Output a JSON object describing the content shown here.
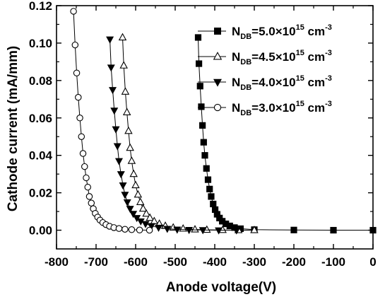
{
  "chart_data": {
    "type": "scatter",
    "xlabel": "Anode voltage(V)",
    "ylabel": "Cathode current (mA/mm)",
    "xlim": [
      -800,
      0
    ],
    "ylim": [
      -0.01,
      0.12
    ],
    "xticks": [
      -800,
      -700,
      -600,
      -500,
      -400,
      -300,
      -200,
      -100,
      0
    ],
    "yticks": [
      0.0,
      0.02,
      0.04,
      0.06,
      0.08,
      0.1,
      0.12
    ],
    "xtick_labels": [
      "-800",
      "-700",
      "-600",
      "-500",
      "-400",
      "-300",
      "-200",
      "-100",
      "0"
    ],
    "ytick_labels": [
      "0.00",
      "0.02",
      "0.04",
      "0.06",
      "0.08",
      "0.10",
      "0.12"
    ],
    "grid": false,
    "legend_position": "top-right",
    "series": [
      {
        "name": "N_DB=5.0×10^15 cm^-3",
        "legend_main": "N",
        "legend_sub": "DB",
        "legend_value": "=5.0×10",
        "legend_exp": "15",
        "legend_unit": " cm",
        "legend_unit_exp": "-3",
        "marker": "square-filled",
        "x": [
          -442,
          -440,
          -437,
          -434,
          -431,
          -428,
          -425,
          -421,
          -417,
          -413,
          -409,
          -404,
          -399,
          -394,
          -388,
          -381,
          -372,
          -362,
          -350,
          -335,
          -300,
          -200,
          -100,
          0
        ],
        "y": [
          0.103,
          0.089,
          0.077,
          0.066,
          0.056,
          0.047,
          0.04,
          0.033,
          0.027,
          0.022,
          0.018,
          0.014,
          0.011,
          0.0085,
          0.0065,
          0.0048,
          0.0034,
          0.0023,
          0.0014,
          0.0008,
          0.0003,
          0.0001,
          0.0,
          0.0
        ]
      },
      {
        "name": "N_DB=4.5×10^15 cm^-3",
        "legend_main": "N",
        "legend_sub": "DB",
        "legend_value": "=4.5×10",
        "legend_exp": "15",
        "legend_unit": " cm",
        "legend_unit_exp": "-3",
        "marker": "triangle-up-open",
        "x": [
          -633,
          -630,
          -626,
          -622,
          -618,
          -614,
          -610,
          -605,
          -600,
          -594,
          -588,
          -581,
          -573,
          -564,
          -553,
          -540,
          -525,
          -505,
          -480,
          -450,
          -420,
          -380,
          -340,
          -300
        ],
        "y": [
          0.103,
          0.088,
          0.074,
          0.063,
          0.053,
          0.044,
          0.037,
          0.03,
          0.024,
          0.019,
          0.015,
          0.0115,
          0.0088,
          0.0066,
          0.0048,
          0.0034,
          0.0023,
          0.0014,
          0.0008,
          0.0004,
          0.0002,
          0.0001,
          0.0,
          0.0
        ]
      },
      {
        "name": "N_DB=4.0×10^15 cm^-3",
        "legend_main": "N",
        "legend_sub": "DB",
        "legend_value": "=4.0×10",
        "legend_exp": "15",
        "legend_unit": " cm",
        "legend_unit_exp": "-3",
        "marker": "triangle-down-filled",
        "x": [
          -665,
          -662,
          -658,
          -654,
          -650,
          -646,
          -642,
          -637,
          -632,
          -627,
          -621,
          -614,
          -606,
          -597,
          -587,
          -575,
          -560,
          -542,
          -520,
          -495,
          -465,
          -430,
          -390,
          -345
        ],
        "y": [
          0.102,
          0.087,
          0.075,
          0.064,
          0.054,
          0.045,
          0.037,
          0.03,
          0.024,
          0.019,
          0.015,
          0.0115,
          0.0088,
          0.0066,
          0.0048,
          0.0034,
          0.0023,
          0.0014,
          0.0008,
          0.0004,
          0.0002,
          0.0001,
          0.0,
          0.0
        ]
      },
      {
        "name": "N_DB=3.0×10^15 cm^-3",
        "legend_main": "N",
        "legend_sub": "DB",
        "legend_value": "=3.0×10",
        "legend_exp": "15",
        "legend_unit": " cm",
        "legend_unit_exp": "-3",
        "marker": "circle-open",
        "x": [
          -757,
          -753,
          -749,
          -745,
          -741,
          -737,
          -733,
          -729,
          -725,
          -721,
          -717,
          -712,
          -707,
          -702,
          -696,
          -690,
          -683,
          -675,
          -666,
          -655,
          -642,
          -627,
          -610,
          -590,
          -565
        ],
        "y": [
          0.117,
          0.099,
          0.084,
          0.071,
          0.06,
          0.05,
          0.041,
          0.034,
          0.028,
          0.023,
          0.018,
          0.0145,
          0.0115,
          0.009,
          0.007,
          0.0054,
          0.0041,
          0.003,
          0.0021,
          0.0014,
          0.0009,
          0.0005,
          0.0003,
          0.0001,
          0.0
        ]
      }
    ]
  }
}
